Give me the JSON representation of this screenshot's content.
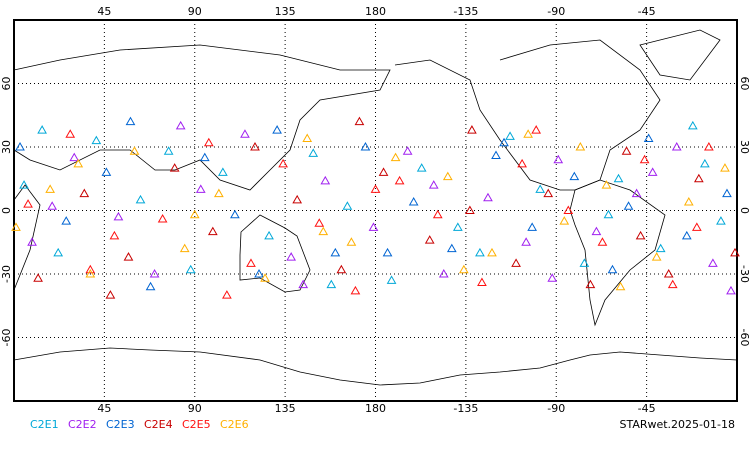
{
  "chart_data": {
    "type": "map-scatter",
    "footer": "STARwet.2025-01-18",
    "xlim": [
      0,
      360
    ],
    "ylim": [
      -90,
      90
    ],
    "xticks": [
      45,
      90,
      135,
      180,
      {
        "value": 225,
        "label": "-135"
      },
      {
        "value": 270,
        "label": "-90"
      },
      {
        "value": 315,
        "label": "-45"
      }
    ],
    "yticks": [
      -60,
      -30,
      0,
      30,
      60
    ],
    "grid": true,
    "series": [
      {
        "name": "C2E1",
        "color": "#00a8d8",
        "x": [
          5,
          22,
          41,
          63,
          88,
          104,
          127,
          149,
          166,
          188,
          203,
          221,
          247,
          262,
          284,
          301,
          322,
          338,
          352,
          14,
          77,
          158,
          232,
          296,
          344
        ],
        "y": [
          12,
          -20,
          33,
          5,
          -28,
          18,
          -12,
          27,
          2,
          -33,
          20,
          -8,
          35,
          10,
          -25,
          15,
          -18,
          40,
          -5,
          38,
          28,
          -35,
          -20,
          -2,
          22
        ]
      },
      {
        "name": "C2E2",
        "color": "#a020f0",
        "x": [
          9,
          30,
          52,
          70,
          93,
          115,
          138,
          155,
          179,
          196,
          214,
          236,
          255,
          271,
          290,
          310,
          330,
          348,
          19,
          83,
          144,
          209,
          268,
          318,
          357
        ],
        "y": [
          -15,
          25,
          -3,
          -30,
          10,
          36,
          -22,
          14,
          -8,
          28,
          -30,
          6,
          -15,
          24,
          -10,
          8,
          30,
          -25,
          2,
          40,
          -35,
          12,
          -32,
          18,
          -38
        ]
      },
      {
        "name": "C2E3",
        "color": "#0064d2",
        "x": [
          3,
          26,
          46,
          68,
          95,
          110,
          131,
          160,
          175,
          199,
          218,
          240,
          258,
          279,
          298,
          316,
          335,
          355,
          58,
          122,
          186,
          244,
          306
        ],
        "y": [
          30,
          -5,
          18,
          -36,
          25,
          -2,
          38,
          -20,
          30,
          4,
          -18,
          26,
          -8,
          16,
          -28,
          34,
          -12,
          8,
          42,
          -30,
          -20,
          32,
          2
        ]
      },
      {
        "name": "C2E4",
        "color": "#c80000",
        "x": [
          12,
          35,
          57,
          80,
          99,
          120,
          141,
          163,
          184,
          207,
          228,
          250,
          266,
          287,
          305,
          326,
          341,
          359,
          48,
          172,
          227,
          312
        ],
        "y": [
          -32,
          8,
          -22,
          20,
          -10,
          30,
          5,
          -28,
          18,
          -14,
          38,
          -25,
          8,
          -35,
          28,
          -30,
          15,
          -20,
          -40,
          42,
          0,
          -12
        ]
      },
      {
        "name": "C2E5",
        "color": "#ff1010",
        "x": [
          7,
          28,
          50,
          74,
          97,
          118,
          134,
          152,
          170,
          192,
          211,
          233,
          253,
          276,
          293,
          314,
          328,
          346,
          38,
          106,
          180,
          260,
          340
        ],
        "y": [
          3,
          36,
          -12,
          -4,
          32,
          -25,
          22,
          -6,
          -38,
          14,
          -2,
          -34,
          22,
          0,
          -15,
          24,
          -35,
          30,
          -28,
          -40,
          10,
          38,
          -8
        ]
      },
      {
        "name": "C2E6",
        "color": "#ffb000",
        "x": [
          1,
          18,
          38,
          60,
          85,
          102,
          125,
          146,
          168,
          190,
          216,
          238,
          256,
          274,
          295,
          320,
          336,
          354,
          32,
          90,
          154,
          224,
          282,
          302
        ],
        "y": [
          -8,
          10,
          -30,
          28,
          -18,
          8,
          -32,
          34,
          -15,
          25,
          16,
          -20,
          36,
          -5,
          12,
          -22,
          4,
          20,
          22,
          -2,
          -10,
          -28,
          30,
          -36
        ]
      }
    ]
  }
}
